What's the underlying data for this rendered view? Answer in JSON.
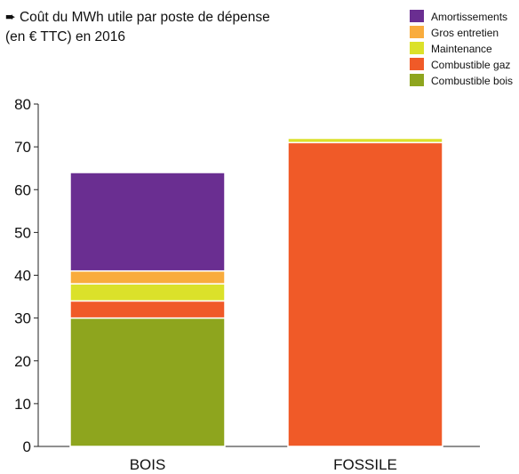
{
  "title_lines": [
    "➨ Coût du MWh utile par poste de dépense",
    "(en € TTC) en 2016"
  ],
  "chart_data": {
    "type": "bar",
    "stacked": true,
    "categories": [
      "BOIS",
      "FOSSILE"
    ],
    "ylim": [
      0,
      80
    ],
    "yticks": [
      0,
      10,
      20,
      30,
      40,
      50,
      60,
      70,
      80
    ],
    "grid": false,
    "legend_position": "top-right",
    "series": [
      {
        "name": "Combustible bois",
        "color": "#8ea51e",
        "values": [
          30,
          0
        ]
      },
      {
        "name": "Combustible gaz",
        "color": "#f05a28",
        "values": [
          4,
          71
        ]
      },
      {
        "name": "Maintenance",
        "color": "#dbe12a",
        "values": [
          4,
          1
        ]
      },
      {
        "name": "Gros entretien",
        "color": "#f9ac3d",
        "values": [
          3,
          0
        ]
      },
      {
        "name": "Amortissements",
        "color": "#6a2e91",
        "values": [
          23,
          0
        ]
      }
    ]
  }
}
